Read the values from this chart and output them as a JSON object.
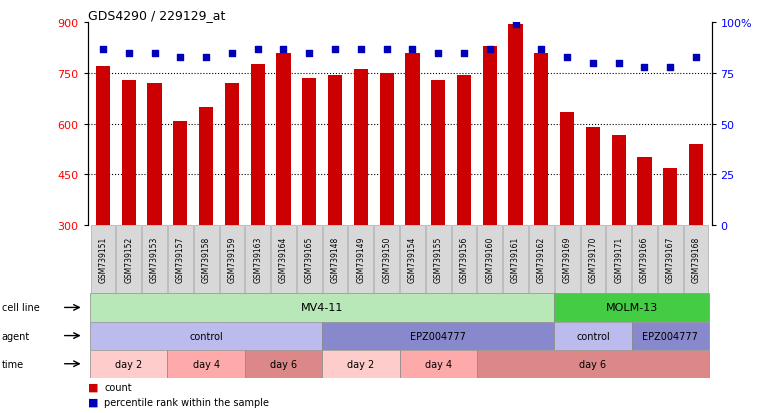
{
  "title": "GDS4290 / 229129_at",
  "samples": [
    "GSM739151",
    "GSM739152",
    "GSM739153",
    "GSM739157",
    "GSM739158",
    "GSM739159",
    "GSM739163",
    "GSM739164",
    "GSM739165",
    "GSM739148",
    "GSM739149",
    "GSM739150",
    "GSM739154",
    "GSM739155",
    "GSM739156",
    "GSM739160",
    "GSM739161",
    "GSM739162",
    "GSM739169",
    "GSM739170",
    "GSM739171",
    "GSM739166",
    "GSM739167",
    "GSM739168"
  ],
  "counts": [
    770,
    730,
    720,
    608,
    650,
    720,
    775,
    810,
    735,
    745,
    762,
    750,
    808,
    730,
    745,
    830,
    895,
    810,
    635,
    590,
    565,
    500,
    470,
    540
  ],
  "percentile": [
    87,
    85,
    85,
    83,
    83,
    85,
    87,
    87,
    85,
    87,
    87,
    87,
    87,
    85,
    85,
    87,
    99,
    87,
    83,
    80,
    80,
    78,
    78,
    83
  ],
  "ylim_left": [
    300,
    900
  ],
  "ylim_right": [
    0,
    100
  ],
  "yticks_left": [
    300,
    450,
    600,
    750,
    900
  ],
  "yticks_right": [
    0,
    25,
    50,
    75,
    100
  ],
  "bar_color": "#cc0000",
  "dot_color": "#0000bb",
  "cell_line_mv411_n": 18,
  "cell_line_mv411_color": "#b8e8b8",
  "cell_line_molm13_color": "#44cc44",
  "agent_segments": [
    {
      "start": 0,
      "end": 9,
      "label": "control",
      "color": "#bbbbee"
    },
    {
      "start": 9,
      "end": 18,
      "label": "EPZ004777",
      "color": "#8888cc"
    },
    {
      "start": 18,
      "end": 21,
      "label": "control",
      "color": "#bbbbee"
    },
    {
      "start": 21,
      "end": 24,
      "label": "EPZ004777",
      "color": "#8888cc"
    }
  ],
  "time_segments": [
    {
      "start": 0,
      "end": 3,
      "label": "day 2",
      "color": "#ffcccc"
    },
    {
      "start": 3,
      "end": 6,
      "label": "day 4",
      "color": "#ffaaaa"
    },
    {
      "start": 6,
      "end": 9,
      "label": "day 6",
      "color": "#dd8888"
    },
    {
      "start": 9,
      "end": 12,
      "label": "day 2",
      "color": "#ffcccc"
    },
    {
      "start": 12,
      "end": 15,
      "label": "day 4",
      "color": "#ffaaaa"
    },
    {
      "start": 15,
      "end": 24,
      "label": "day 6",
      "color": "#dd8888"
    }
  ],
  "row_label_color": "#555555",
  "legend_items": [
    {
      "color": "#cc0000",
      "label": "count"
    },
    {
      "color": "#0000bb",
      "label": "percentile rank within the sample"
    }
  ]
}
